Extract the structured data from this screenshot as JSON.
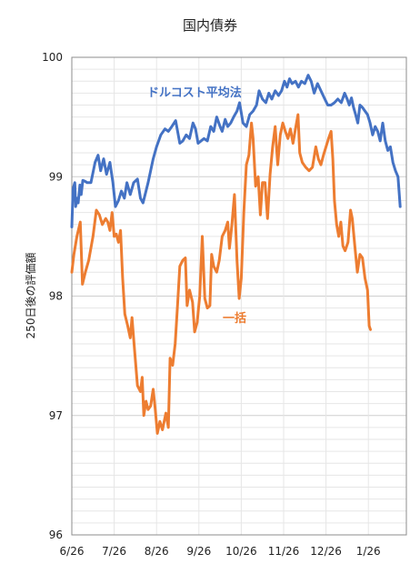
{
  "chart_data": {
    "type": "line",
    "title": "国内債券",
    "xlabel": "",
    "ylabel": "250日後の評価額",
    "ylim": [
      96,
      100
    ],
    "y_ticks": [
      96,
      97,
      98,
      99,
      100
    ],
    "x_ticks": [
      "6/26",
      "7/26",
      "8/26",
      "9/26",
      "10/26",
      "11/26",
      "12/26",
      "1/26"
    ],
    "grid": true,
    "legend": "none",
    "series": [
      {
        "name": "ドルコスト平均法",
        "color": "#4472c4",
        "points": [
          [
            0,
            98.58
          ],
          [
            0.03,
            98.9
          ],
          [
            0.07,
            98.95
          ],
          [
            0.09,
            98.75
          ],
          [
            0.12,
            98.82
          ],
          [
            0.15,
            98.78
          ],
          [
            0.19,
            98.93
          ],
          [
            0.22,
            98.85
          ],
          [
            0.26,
            98.97
          ],
          [
            0.32,
            98.96
          ],
          [
            0.36,
            98.95
          ],
          [
            0.45,
            98.95
          ],
          [
            0.55,
            99.12
          ],
          [
            0.62,
            99.18
          ],
          [
            0.68,
            99.05
          ],
          [
            0.75,
            99.15
          ],
          [
            0.82,
            99.02
          ],
          [
            0.9,
            99.12
          ],
          [
            0.97,
            98.95
          ],
          [
            1.03,
            98.75
          ],
          [
            1.1,
            98.8
          ],
          [
            1.17,
            98.88
          ],
          [
            1.24,
            98.82
          ],
          [
            1.3,
            98.95
          ],
          [
            1.38,
            98.85
          ],
          [
            1.46,
            98.95
          ],
          [
            1.55,
            98.98
          ],
          [
            1.62,
            98.82
          ],
          [
            1.68,
            98.78
          ],
          [
            1.75,
            98.88
          ],
          [
            1.8,
            98.95
          ],
          [
            1.86,
            99.05
          ],
          [
            1.92,
            99.15
          ],
          [
            2.0,
            99.25
          ],
          [
            2.1,
            99.35
          ],
          [
            2.2,
            99.4
          ],
          [
            2.28,
            99.38
          ],
          [
            2.36,
            99.42
          ],
          [
            2.45,
            99.47
          ],
          [
            2.55,
            99.28
          ],
          [
            2.62,
            99.3
          ],
          [
            2.7,
            99.35
          ],
          [
            2.78,
            99.32
          ],
          [
            2.86,
            99.45
          ],
          [
            2.92,
            99.4
          ],
          [
            2.98,
            99.28
          ],
          [
            3.05,
            99.3
          ],
          [
            3.12,
            99.32
          ],
          [
            3.2,
            99.3
          ],
          [
            3.28,
            99.42
          ],
          [
            3.35,
            99.38
          ],
          [
            3.42,
            99.5
          ],
          [
            3.5,
            99.42
          ],
          [
            3.55,
            99.38
          ],
          [
            3.62,
            99.48
          ],
          [
            3.68,
            99.42
          ],
          [
            3.75,
            99.45
          ],
          [
            3.82,
            99.5
          ],
          [
            3.9,
            99.55
          ],
          [
            3.96,
            99.62
          ],
          [
            4.04,
            99.45
          ],
          [
            4.12,
            99.42
          ],
          [
            4.2,
            99.52
          ],
          [
            4.28,
            99.55
          ],
          [
            4.36,
            99.6
          ],
          [
            4.42,
            99.72
          ],
          [
            4.5,
            99.65
          ],
          [
            4.58,
            99.62
          ],
          [
            4.65,
            99.7
          ],
          [
            4.72,
            99.65
          ],
          [
            4.8,
            99.72
          ],
          [
            4.88,
            99.68
          ],
          [
            4.95,
            99.72
          ],
          [
            5.02,
            99.8
          ],
          [
            5.08,
            99.75
          ],
          [
            5.14,
            99.82
          ],
          [
            5.2,
            99.78
          ],
          [
            5.28,
            99.8
          ],
          [
            5.35,
            99.75
          ],
          [
            5.42,
            99.8
          ],
          [
            5.5,
            99.78
          ],
          [
            5.58,
            99.85
          ],
          [
            5.65,
            99.8
          ],
          [
            5.72,
            99.7
          ],
          [
            5.8,
            99.78
          ],
          [
            5.88,
            99.72
          ],
          [
            5.96,
            99.66
          ],
          [
            6.04,
            99.6
          ],
          [
            6.12,
            99.6
          ],
          [
            6.2,
            99.62
          ],
          [
            6.28,
            99.65
          ],
          [
            6.36,
            99.62
          ],
          [
            6.44,
            99.7
          ],
          [
            6.5,
            99.65
          ],
          [
            6.55,
            99.6
          ],
          [
            6.6,
            99.66
          ],
          [
            6.65,
            99.58
          ],
          [
            6.7,
            99.52
          ],
          [
            6.75,
            99.45
          ],
          [
            6.8,
            99.6
          ],
          [
            6.86,
            99.58
          ],
          [
            6.92,
            99.55
          ],
          [
            6.98,
            99.52
          ],
          [
            7.04,
            99.45
          ],
          [
            7.1,
            99.35
          ],
          [
            7.16,
            99.42
          ],
          [
            7.22,
            99.38
          ],
          [
            7.28,
            99.3
          ],
          [
            7.34,
            99.45
          ],
          [
            7.4,
            99.3
          ],
          [
            7.46,
            99.22
          ],
          [
            7.52,
            99.25
          ],
          [
            7.58,
            99.12
          ],
          [
            7.64,
            99.05
          ],
          [
            7.7,
            99.0
          ],
          [
            7.75,
            98.75
          ]
        ]
      },
      {
        "name": "一括",
        "color": "#ed7d31",
        "points": [
          [
            0,
            98.2
          ],
          [
            0.05,
            98.35
          ],
          [
            0.12,
            98.5
          ],
          [
            0.2,
            98.62
          ],
          [
            0.25,
            98.1
          ],
          [
            0.32,
            98.2
          ],
          [
            0.4,
            98.3
          ],
          [
            0.5,
            98.5
          ],
          [
            0.58,
            98.72
          ],
          [
            0.65,
            98.68
          ],
          [
            0.72,
            98.6
          ],
          [
            0.8,
            98.65
          ],
          [
            0.85,
            98.62
          ],
          [
            0.9,
            98.55
          ],
          [
            0.95,
            98.7
          ],
          [
            1.0,
            98.5
          ],
          [
            1.05,
            98.52
          ],
          [
            1.1,
            98.45
          ],
          [
            1.15,
            98.55
          ],
          [
            1.2,
            98.15
          ],
          [
            1.25,
            97.85
          ],
          [
            1.32,
            97.75
          ],
          [
            1.38,
            97.65
          ],
          [
            1.42,
            97.82
          ],
          [
            1.48,
            97.55
          ],
          [
            1.55,
            97.25
          ],
          [
            1.62,
            97.2
          ],
          [
            1.66,
            97.32
          ],
          [
            1.7,
            97.0
          ],
          [
            1.75,
            97.12
          ],
          [
            1.8,
            97.05
          ],
          [
            1.86,
            97.08
          ],
          [
            1.92,
            97.22
          ],
          [
            1.97,
            97.05
          ],
          [
            2.02,
            96.85
          ],
          [
            2.08,
            96.95
          ],
          [
            2.14,
            96.88
          ],
          [
            2.22,
            97.02
          ],
          [
            2.28,
            96.9
          ],
          [
            2.32,
            97.48
          ],
          [
            2.38,
            97.42
          ],
          [
            2.44,
            97.6
          ],
          [
            2.5,
            97.95
          ],
          [
            2.55,
            98.25
          ],
          [
            2.62,
            98.3
          ],
          [
            2.68,
            98.32
          ],
          [
            2.72,
            97.92
          ],
          [
            2.78,
            98.05
          ],
          [
            2.85,
            97.95
          ],
          [
            2.9,
            97.7
          ],
          [
            2.96,
            97.78
          ],
          [
            3.02,
            98.0
          ],
          [
            3.08,
            98.5
          ],
          [
            3.14,
            97.98
          ],
          [
            3.2,
            97.9
          ],
          [
            3.26,
            97.92
          ],
          [
            3.3,
            98.35
          ],
          [
            3.35,
            98.25
          ],
          [
            3.42,
            98.2
          ],
          [
            3.48,
            98.3
          ],
          [
            3.55,
            98.5
          ],
          [
            3.62,
            98.55
          ],
          [
            3.68,
            98.62
          ],
          [
            3.72,
            98.4
          ],
          [
            3.78,
            98.6
          ],
          [
            3.84,
            98.85
          ],
          [
            3.9,
            98.3
          ],
          [
            3.95,
            97.98
          ],
          [
            4.0,
            98.15
          ],
          [
            4.06,
            98.7
          ],
          [
            4.12,
            99.1
          ],
          [
            4.18,
            99.18
          ],
          [
            4.24,
            99.45
          ],
          [
            4.28,
            99.32
          ],
          [
            4.34,
            98.92
          ],
          [
            4.4,
            99.0
          ],
          [
            4.45,
            98.68
          ],
          [
            4.5,
            98.95
          ],
          [
            4.56,
            98.95
          ],
          [
            4.62,
            98.65
          ],
          [
            4.68,
            99.02
          ],
          [
            4.74,
            99.25
          ],
          [
            4.8,
            99.42
          ],
          [
            4.86,
            99.1
          ],
          [
            4.92,
            99.35
          ],
          [
            4.98,
            99.45
          ],
          [
            5.04,
            99.38
          ],
          [
            5.1,
            99.32
          ],
          [
            5.16,
            99.4
          ],
          [
            5.22,
            99.28
          ],
          [
            5.28,
            99.4
          ],
          [
            5.34,
            99.52
          ],
          [
            5.38,
            99.2
          ],
          [
            5.44,
            99.12
          ],
          [
            5.52,
            99.08
          ],
          [
            5.6,
            99.05
          ],
          [
            5.68,
            99.08
          ],
          [
            5.76,
            99.25
          ],
          [
            5.82,
            99.15
          ],
          [
            5.88,
            99.1
          ],
          [
            5.94,
            99.18
          ],
          [
            6.0,
            99.25
          ],
          [
            6.06,
            99.32
          ],
          [
            6.12,
            99.38
          ],
          [
            6.16,
            99.15
          ],
          [
            6.2,
            98.8
          ],
          [
            6.25,
            98.6
          ],
          [
            6.3,
            98.5
          ],
          [
            6.35,
            98.62
          ],
          [
            6.4,
            98.42
          ],
          [
            6.45,
            98.38
          ],
          [
            6.52,
            98.45
          ],
          [
            6.58,
            98.72
          ],
          [
            6.62,
            98.65
          ],
          [
            6.68,
            98.42
          ],
          [
            6.74,
            98.2
          ],
          [
            6.8,
            98.35
          ],
          [
            6.86,
            98.32
          ],
          [
            6.92,
            98.15
          ],
          [
            6.98,
            98.05
          ],
          [
            7.02,
            97.75
          ],
          [
            7.05,
            97.72
          ]
        ]
      }
    ],
    "annotations": [
      {
        "text": "ドルコスト平均法",
        "color": "#4472c4"
      },
      {
        "text": "一括",
        "color": "#ed7d31"
      }
    ]
  }
}
